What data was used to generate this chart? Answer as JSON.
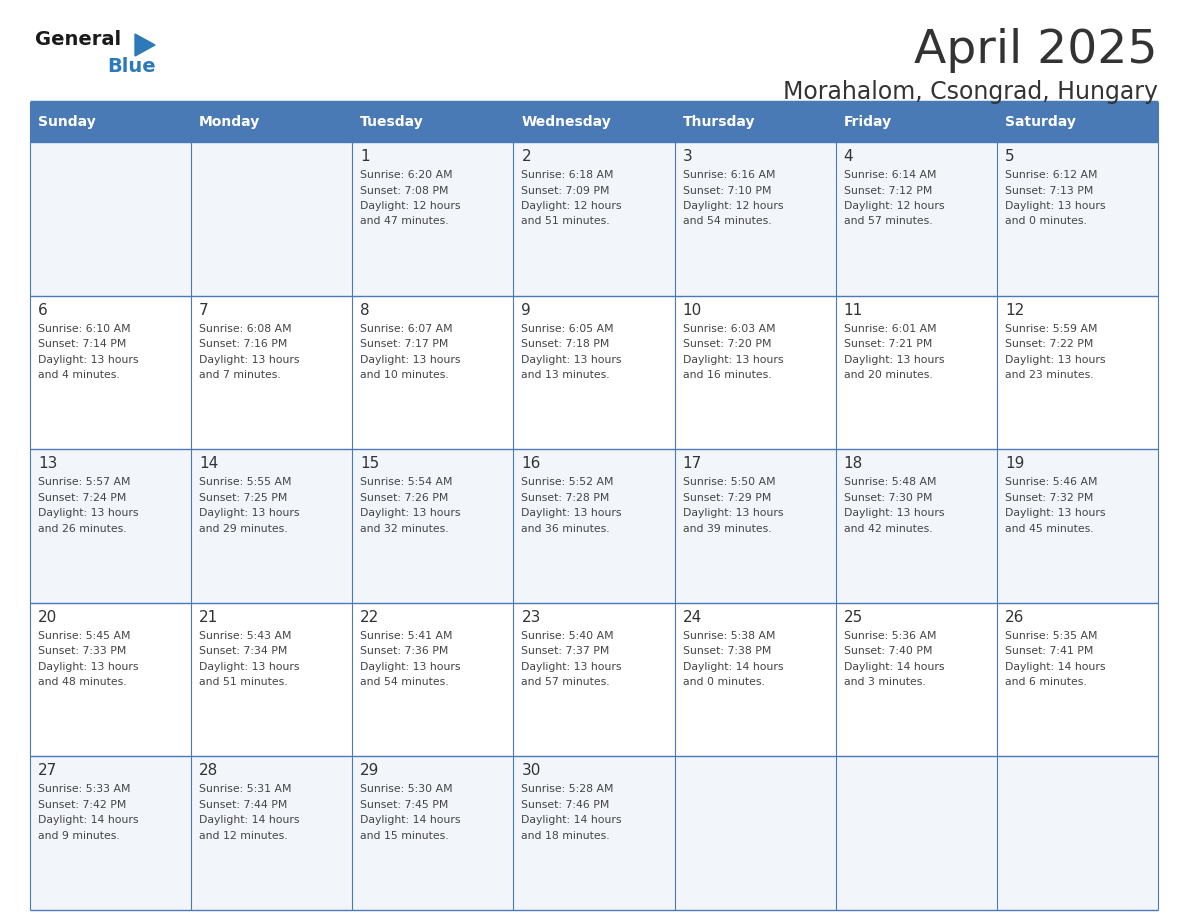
{
  "title": "April 2025",
  "subtitle": "Morahalom, Csongrad, Hungary",
  "header_bg_color": "#4a7ab5",
  "header_text_color": "#ffffff",
  "cell_bg_odd": "#f2f6fb",
  "cell_bg_even": "#ffffff",
  "grid_line_color": "#4a7ab5",
  "date_text_color": "#333333",
  "info_text_color": "#444444",
  "day_names": [
    "Sunday",
    "Monday",
    "Tuesday",
    "Wednesday",
    "Thursday",
    "Friday",
    "Saturday"
  ],
  "calendar_data": [
    [
      null,
      null,
      {
        "day": "1",
        "sunrise": "6:20 AM",
        "sunset": "7:08 PM",
        "dl1": "12 hours",
        "dl2": "and 47 minutes."
      },
      {
        "day": "2",
        "sunrise": "6:18 AM",
        "sunset": "7:09 PM",
        "dl1": "12 hours",
        "dl2": "and 51 minutes."
      },
      {
        "day": "3",
        "sunrise": "6:16 AM",
        "sunset": "7:10 PM",
        "dl1": "12 hours",
        "dl2": "and 54 minutes."
      },
      {
        "day": "4",
        "sunrise": "6:14 AM",
        "sunset": "7:12 PM",
        "dl1": "12 hours",
        "dl2": "and 57 minutes."
      },
      {
        "day": "5",
        "sunrise": "6:12 AM",
        "sunset": "7:13 PM",
        "dl1": "13 hours",
        "dl2": "and 0 minutes."
      }
    ],
    [
      {
        "day": "6",
        "sunrise": "6:10 AM",
        "sunset": "7:14 PM",
        "dl1": "13 hours",
        "dl2": "and 4 minutes."
      },
      {
        "day": "7",
        "sunrise": "6:08 AM",
        "sunset": "7:16 PM",
        "dl1": "13 hours",
        "dl2": "and 7 minutes."
      },
      {
        "day": "8",
        "sunrise": "6:07 AM",
        "sunset": "7:17 PM",
        "dl1": "13 hours",
        "dl2": "and 10 minutes."
      },
      {
        "day": "9",
        "sunrise": "6:05 AM",
        "sunset": "7:18 PM",
        "dl1": "13 hours",
        "dl2": "and 13 minutes."
      },
      {
        "day": "10",
        "sunrise": "6:03 AM",
        "sunset": "7:20 PM",
        "dl1": "13 hours",
        "dl2": "and 16 minutes."
      },
      {
        "day": "11",
        "sunrise": "6:01 AM",
        "sunset": "7:21 PM",
        "dl1": "13 hours",
        "dl2": "and 20 minutes."
      },
      {
        "day": "12",
        "sunrise": "5:59 AM",
        "sunset": "7:22 PM",
        "dl1": "13 hours",
        "dl2": "and 23 minutes."
      }
    ],
    [
      {
        "day": "13",
        "sunrise": "5:57 AM",
        "sunset": "7:24 PM",
        "dl1": "13 hours",
        "dl2": "and 26 minutes."
      },
      {
        "day": "14",
        "sunrise": "5:55 AM",
        "sunset": "7:25 PM",
        "dl1": "13 hours",
        "dl2": "and 29 minutes."
      },
      {
        "day": "15",
        "sunrise": "5:54 AM",
        "sunset": "7:26 PM",
        "dl1": "13 hours",
        "dl2": "and 32 minutes."
      },
      {
        "day": "16",
        "sunrise": "5:52 AM",
        "sunset": "7:28 PM",
        "dl1": "13 hours",
        "dl2": "and 36 minutes."
      },
      {
        "day": "17",
        "sunrise": "5:50 AM",
        "sunset": "7:29 PM",
        "dl1": "13 hours",
        "dl2": "and 39 minutes."
      },
      {
        "day": "18",
        "sunrise": "5:48 AM",
        "sunset": "7:30 PM",
        "dl1": "13 hours",
        "dl2": "and 42 minutes."
      },
      {
        "day": "19",
        "sunrise": "5:46 AM",
        "sunset": "7:32 PM",
        "dl1": "13 hours",
        "dl2": "and 45 minutes."
      }
    ],
    [
      {
        "day": "20",
        "sunrise": "5:45 AM",
        "sunset": "7:33 PM",
        "dl1": "13 hours",
        "dl2": "and 48 minutes."
      },
      {
        "day": "21",
        "sunrise": "5:43 AM",
        "sunset": "7:34 PM",
        "dl1": "13 hours",
        "dl2": "and 51 minutes."
      },
      {
        "day": "22",
        "sunrise": "5:41 AM",
        "sunset": "7:36 PM",
        "dl1": "13 hours",
        "dl2": "and 54 minutes."
      },
      {
        "day": "23",
        "sunrise": "5:40 AM",
        "sunset": "7:37 PM",
        "dl1": "13 hours",
        "dl2": "and 57 minutes."
      },
      {
        "day": "24",
        "sunrise": "5:38 AM",
        "sunset": "7:38 PM",
        "dl1": "14 hours",
        "dl2": "and 0 minutes."
      },
      {
        "day": "25",
        "sunrise": "5:36 AM",
        "sunset": "7:40 PM",
        "dl1": "14 hours",
        "dl2": "and 3 minutes."
      },
      {
        "day": "26",
        "sunrise": "5:35 AM",
        "sunset": "7:41 PM",
        "dl1": "14 hours",
        "dl2": "and 6 minutes."
      }
    ],
    [
      {
        "day": "27",
        "sunrise": "5:33 AM",
        "sunset": "7:42 PM",
        "dl1": "14 hours",
        "dl2": "and 9 minutes."
      },
      {
        "day": "28",
        "sunrise": "5:31 AM",
        "sunset": "7:44 PM",
        "dl1": "14 hours",
        "dl2": "and 12 minutes."
      },
      {
        "day": "29",
        "sunrise": "5:30 AM",
        "sunset": "7:45 PM",
        "dl1": "14 hours",
        "dl2": "and 15 minutes."
      },
      {
        "day": "30",
        "sunrise": "5:28 AM",
        "sunset": "7:46 PM",
        "dl1": "14 hours",
        "dl2": "and 18 minutes."
      },
      null,
      null,
      null
    ]
  ],
  "logo_text1_color": "#1a1a1a",
  "logo_text2_color": "#2e7ab8",
  "logo_triangle_color": "#2e7ab8",
  "fig_width": 11.88,
  "fig_height": 9.18,
  "dpi": 100
}
